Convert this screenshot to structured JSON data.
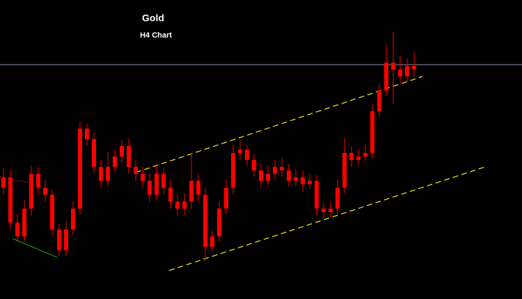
{
  "chart_data": {
    "type": "candlestick",
    "title": "Gold",
    "subtitle": "H4 Chart",
    "color": "#ff0000",
    "ylim": [
      0,
      430
    ],
    "open": [
      160,
      175,
      110,
      90,
      130,
      180,
      160,
      150,
      100,
      70,
      100,
      130,
      245,
      230,
      190,
      170,
      190,
      205,
      220,
      190,
      180,
      170,
      150,
      180,
      160,
      140,
      130,
      140,
      170,
      150,
      75,
      90,
      130,
      160,
      210,
      215,
      200,
      185,
      170,
      180,
      190,
      185,
      170,
      175,
      165,
      170,
      130,
      125,
      130,
      160,
      210,
      200,
      205,
      210,
      270,
      300,
      340,
      330,
      320,
      335
    ],
    "high": [
      188,
      186,
      122,
      142,
      192,
      190,
      172,
      158,
      108,
      112,
      140,
      255,
      252,
      240,
      200,
      212,
      215,
      228,
      230,
      200,
      190,
      182,
      192,
      188,
      172,
      150,
      152,
      210,
      180,
      160,
      98,
      140,
      172,
      222,
      228,
      222,
      208,
      195,
      192,
      200,
      202,
      194,
      186,
      184,
      180,
      178,
      138,
      140,
      172,
      232,
      220,
      215,
      222,
      280,
      310,
      366,
      384,
      350,
      346,
      355
    ],
    "low": [
      150,
      100,
      82,
      82,
      120,
      150,
      140,
      92,
      62,
      62,
      92,
      122,
      220,
      180,
      160,
      162,
      182,
      196,
      180,
      170,
      160,
      140,
      142,
      150,
      130,
      120,
      120,
      130,
      140,
      55,
      68,
      82,
      122,
      150,
      200,
      192,
      176,
      160,
      162,
      172,
      176,
      162,
      162,
      156,
      158,
      120,
      115,
      118,
      122,
      152,
      190,
      192,
      198,
      202,
      262,
      292,
      280,
      310,
      312,
      320
    ],
    "close": [
      175,
      110,
      90,
      130,
      180,
      160,
      150,
      100,
      70,
      100,
      130,
      245,
      230,
      190,
      170,
      190,
      205,
      220,
      190,
      180,
      170,
      150,
      180,
      160,
      140,
      130,
      140,
      170,
      150,
      75,
      90,
      130,
      160,
      210,
      215,
      200,
      185,
      170,
      180,
      190,
      185,
      170,
      175,
      165,
      170,
      130,
      125,
      130,
      160,
      210,
      200,
      205,
      210,
      270,
      300,
      340,
      330,
      320,
      335,
      330
    ]
  }
}
